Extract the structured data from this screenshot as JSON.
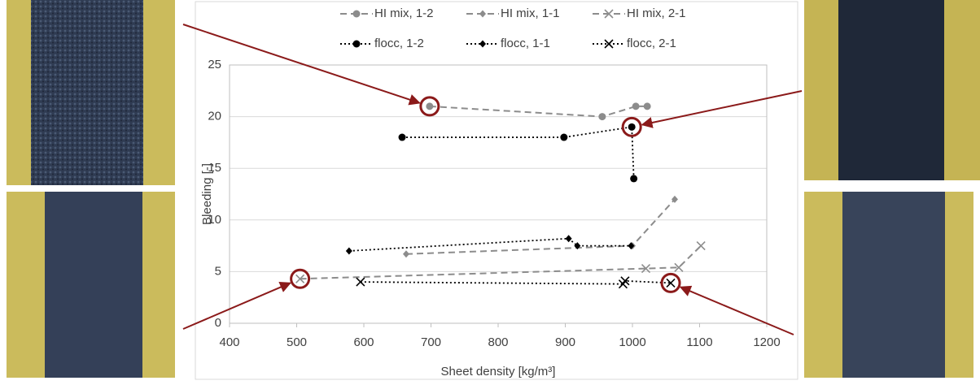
{
  "chart_data": {
    "type": "line",
    "xlabel": "Sheet density [kg/m³]",
    "ylabel": "Bleeding [-]",
    "xlim": [
      400,
      1200
    ],
    "xticks": [
      400,
      500,
      600,
      700,
      800,
      900,
      1000,
      1100,
      1200
    ],
    "ylim": [
      0,
      25
    ],
    "yticks": [
      0,
      5,
      10,
      15,
      20,
      25
    ],
    "grid": true,
    "series": [
      {
        "name": "HI mix, 1-2",
        "color": "#8c8c8c",
        "marker": "circle",
        "linestyle": "dashed",
        "x": [
          698,
          955,
          1005,
          1022
        ],
        "values": [
          21,
          20,
          21,
          21
        ]
      },
      {
        "name": "HI mix, 1-1",
        "color": "#8c8c8c",
        "marker": "diamond",
        "linestyle": "dashed",
        "x": [
          663,
          1000,
          1063
        ],
        "values": [
          6.7,
          7.5,
          12
        ]
      },
      {
        "name": "HI mix, 2-1",
        "color": "#8c8c8c",
        "marker": "x",
        "linestyle": "dashed",
        "x": [
          505,
          1020,
          1069,
          1102
        ],
        "values": [
          4.3,
          5.3,
          5.4,
          7.5
        ]
      },
      {
        "name": "flocc, 1-2",
        "color": "#000000",
        "marker": "circle",
        "linestyle": "dotted",
        "x": [
          657,
          898,
          999,
          1002
        ],
        "values": [
          18,
          18,
          19,
          14
        ]
      },
      {
        "name": "flocc, 1-1",
        "color": "#000000",
        "marker": "diamond",
        "linestyle": "dotted",
        "x": [
          578,
          905,
          918,
          998
        ],
        "values": [
          7,
          8.2,
          7.5,
          7.5
        ]
      },
      {
        "name": "flocc, 2-1",
        "color": "#000000",
        "marker": "x",
        "linestyle": "dotted",
        "x": [
          595,
          986,
          989,
          1057
        ],
        "values": [
          4,
          3.8,
          4.1,
          3.9
        ]
      }
    ]
  }
}
